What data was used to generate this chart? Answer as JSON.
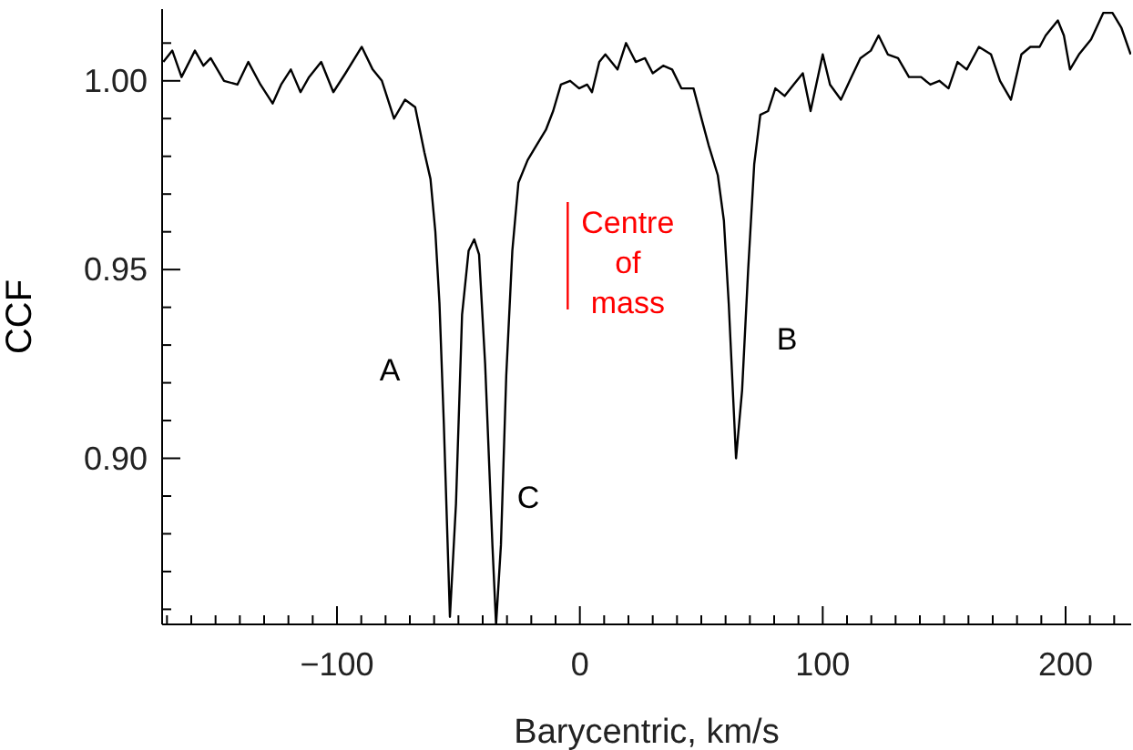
{
  "chart_data": {
    "type": "line",
    "xlabel": "Barycentric, km/s",
    "ylabel": "CCF",
    "xlim": [
      -172,
      227
    ],
    "ylim": [
      0.856,
      1.019
    ],
    "xticks": [
      {
        "value": -170,
        "label": null
      },
      {
        "value": -160,
        "label": null
      },
      {
        "value": -150,
        "label": null
      },
      {
        "value": -140,
        "label": null
      },
      {
        "value": -130,
        "label": null
      },
      {
        "value": -120,
        "label": null
      },
      {
        "value": -110,
        "label": null
      },
      {
        "value": -100,
        "label": "−100"
      },
      {
        "value": -90,
        "label": null
      },
      {
        "value": -80,
        "label": null
      },
      {
        "value": -70,
        "label": null
      },
      {
        "value": -60,
        "label": null
      },
      {
        "value": -50,
        "label": null
      },
      {
        "value": -40,
        "label": null
      },
      {
        "value": -30,
        "label": null
      },
      {
        "value": -20,
        "label": null
      },
      {
        "value": -10,
        "label": null
      },
      0,
      {
        "value": 10,
        "label": null
      },
      {
        "value": 20,
        "label": null
      },
      {
        "value": 30,
        "label": null
      },
      {
        "value": 40,
        "label": null
      },
      {
        "value": 50,
        "label": null
      },
      {
        "value": 60,
        "label": null
      },
      {
        "value": 70,
        "label": null
      },
      {
        "value": 80,
        "label": null
      },
      {
        "value": 90,
        "label": null
      },
      100,
      {
        "value": 110,
        "label": null
      },
      {
        "value": 120,
        "label": null
      },
      {
        "value": 130,
        "label": null
      },
      {
        "value": 140,
        "label": null
      },
      {
        "value": 150,
        "label": null
      },
      {
        "value": 160,
        "label": null
      },
      {
        "value": 170,
        "label": null
      },
      {
        "value": 180,
        "label": null
      },
      {
        "value": 190,
        "label": null
      },
      200,
      {
        "value": 210,
        "label": null
      },
      {
        "value": 220,
        "label": null
      }
    ],
    "yticks": [
      {
        "value": 0.86,
        "label": null
      },
      {
        "value": 0.87,
        "label": null
      },
      {
        "value": 0.88,
        "label": null
      },
      {
        "value": 0.89,
        "label": null
      },
      {
        "value": 0.9,
        "label": "0.90"
      },
      {
        "value": 0.91,
        "label": null
      },
      {
        "value": 0.92,
        "label": null
      },
      {
        "value": 0.93,
        "label": null
      },
      {
        "value": 0.94,
        "label": null
      },
      {
        "value": 0.95,
        "label": "0.95"
      },
      {
        "value": 0.96,
        "label": null
      },
      {
        "value": 0.97,
        "label": null
      },
      {
        "value": 0.98,
        "label": null
      },
      {
        "value": 0.99,
        "label": null
      },
      {
        "value": 1.0,
        "label": "1.00"
      },
      {
        "value": 1.01,
        "label": null
      }
    ],
    "marker": "none",
    "line_style": "solid",
    "ref_lines": [
      {
        "axis": "x",
        "value": -5,
        "label": "Centre of mass",
        "color": "#ff0000"
      }
    ],
    "series": [
      {
        "color": "#000000",
        "x": [
          -171.5,
          -167.8,
          -164,
          -158.5,
          -155,
          -152,
          -146.5,
          -141,
          -136.5,
          -131.5,
          -126.5,
          -123,
          -119,
          -115,
          -111.5,
          -106.5,
          -101.5,
          -96.5,
          -89.8,
          -85.3,
          -81.5,
          -76.5,
          -72,
          -67.8,
          -64,
          -61.5,
          -59.5,
          -57.8,
          -56,
          -53.5,
          -51,
          -48.5,
          -45.8,
          -43.5,
          -41.5,
          -39,
          -36,
          -34.5,
          -32.5,
          -30.3,
          -27.8,
          -25.3,
          -21.5,
          -17.8,
          -14,
          -11,
          -7.8,
          -4,
          -0.3,
          3,
          5,
          8,
          10.5,
          13,
          15.5,
          19,
          23,
          26.8,
          30,
          34.3,
          38,
          41.8,
          46.8,
          50.5,
          53,
          56.8,
          59.3,
          61.3,
          64.3,
          66.8,
          69.3,
          71.8,
          74.3,
          77.5,
          80.5,
          84.3,
          88,
          91.8,
          95,
          100,
          103,
          107.5,
          111.8,
          115.5,
          119.8,
          123,
          126.8,
          131,
          135.5,
          140.5,
          144.3,
          148,
          151.8,
          155.5,
          159.3,
          164.3,
          169.3,
          173,
          177.5,
          181.8,
          185.5,
          189.3,
          191.8,
          196.8,
          199.3,
          201.8,
          205.5,
          210.5,
          215.5,
          219.3,
          223,
          226.8
        ],
        "values": [
          1.005,
          1.008,
          1.001,
          1.008,
          1.004,
          1.006,
          1.0,
          0.999,
          1.005,
          0.999,
          0.994,
          0.999,
          1.003,
          0.997,
          1.001,
          1.005,
          0.997,
          1.002,
          1.009,
          1.003,
          1.0,
          0.99,
          0.995,
          0.993,
          0.981,
          0.974,
          0.96,
          0.941,
          0.909,
          0.858,
          0.888,
          0.938,
          0.955,
          0.958,
          0.954,
          0.925,
          0.877,
          0.856,
          0.877,
          0.922,
          0.955,
          0.973,
          0.979,
          0.983,
          0.987,
          0.992,
          0.999,
          1.0,
          0.998,
          0.999,
          0.997,
          1.005,
          1.007,
          1.005,
          1.003,
          1.01,
          1.005,
          1.006,
          1.002,
          1.004,
          1.003,
          0.998,
          0.998,
          0.989,
          0.983,
          0.975,
          0.963,
          0.941,
          0.9,
          0.918,
          0.95,
          0.978,
          0.991,
          0.992,
          0.998,
          0.996,
          0.999,
          1.002,
          0.992,
          1.007,
          0.999,
          0.995,
          1.001,
          1.006,
          1.008,
          1.012,
          1.007,
          1.006,
          1.001,
          1.001,
          0.999,
          1.0,
          0.998,
          1.005,
          1.003,
          1.009,
          1.007,
          1.0,
          0.995,
          1.007,
          1.009,
          1.009,
          1.012,
          1.016,
          1.012,
          1.003,
          1.007,
          1.011,
          1.018,
          1.018,
          1.014,
          1.007
        ]
      }
    ],
    "annotations": [
      "A",
      "C",
      "B"
    ]
  }
}
